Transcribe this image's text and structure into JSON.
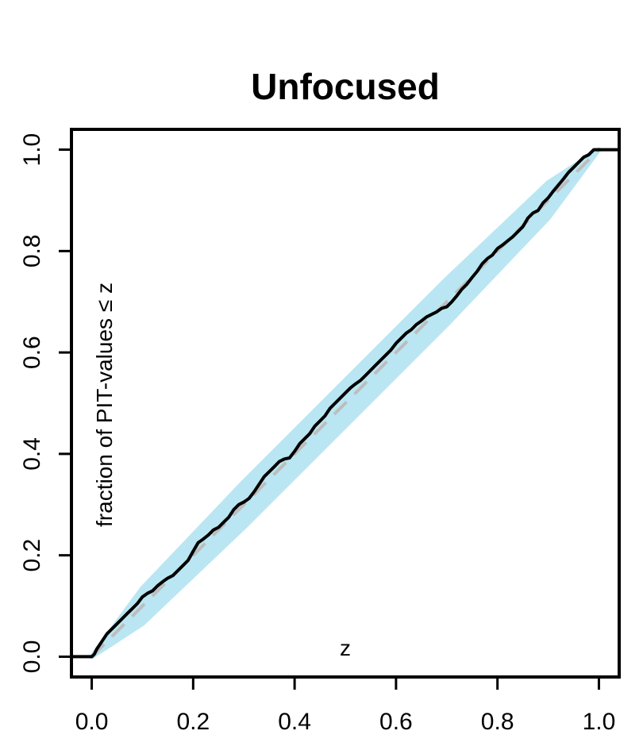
{
  "chart_data": {
    "type": "line",
    "title": "Unfocused",
    "xlabel": "z",
    "ylabel": "fraction of PIT-values ≤ z",
    "xlim": [
      -0.04,
      1.04
    ],
    "ylim": [
      -0.04,
      1.04
    ],
    "x_ticks": [
      "0.0",
      "0.2",
      "0.4",
      "0.6",
      "0.8",
      "1.0"
    ],
    "y_ticks": [
      "0.0",
      "0.2",
      "0.4",
      "0.6",
      "0.8",
      "1.0"
    ],
    "grid": false,
    "legend": "none",
    "series": [
      {
        "role": "empirical-cdf",
        "color": "#000000",
        "x": [
          -0.04,
          0.0,
          0.005,
          0.01,
          0.02,
          0.03,
          0.04,
          0.05,
          0.06,
          0.07,
          0.08,
          0.09,
          0.1,
          0.11,
          0.12,
          0.13,
          0.14,
          0.15,
          0.16,
          0.17,
          0.18,
          0.19,
          0.2,
          0.21,
          0.22,
          0.23,
          0.24,
          0.25,
          0.26,
          0.27,
          0.28,
          0.29,
          0.3,
          0.31,
          0.32,
          0.33,
          0.34,
          0.35,
          0.36,
          0.37,
          0.38,
          0.39,
          0.4,
          0.41,
          0.42,
          0.43,
          0.44,
          0.45,
          0.46,
          0.47,
          0.48,
          0.49,
          0.5,
          0.51,
          0.52,
          0.53,
          0.54,
          0.55,
          0.56,
          0.57,
          0.58,
          0.59,
          0.6,
          0.61,
          0.62,
          0.63,
          0.64,
          0.65,
          0.66,
          0.67,
          0.68,
          0.69,
          0.7,
          0.71,
          0.72,
          0.73,
          0.74,
          0.75,
          0.76,
          0.77,
          0.78,
          0.79,
          0.8,
          0.81,
          0.82,
          0.83,
          0.84,
          0.85,
          0.86,
          0.87,
          0.88,
          0.89,
          0.9,
          0.91,
          0.92,
          0.93,
          0.94,
          0.95,
          0.96,
          0.97,
          0.98,
          0.99,
          1.0,
          1.04
        ],
        "y": [
          0.0,
          0.0,
          0.005,
          0.015,
          0.03,
          0.045,
          0.055,
          0.065,
          0.075,
          0.085,
          0.095,
          0.105,
          0.118,
          0.125,
          0.13,
          0.14,
          0.148,
          0.155,
          0.16,
          0.17,
          0.18,
          0.19,
          0.208,
          0.225,
          0.232,
          0.24,
          0.25,
          0.255,
          0.265,
          0.275,
          0.29,
          0.3,
          0.305,
          0.312,
          0.325,
          0.34,
          0.355,
          0.365,
          0.375,
          0.385,
          0.39,
          0.392,
          0.405,
          0.42,
          0.43,
          0.44,
          0.455,
          0.465,
          0.475,
          0.49,
          0.5,
          0.51,
          0.52,
          0.53,
          0.538,
          0.545,
          0.555,
          0.565,
          0.575,
          0.585,
          0.595,
          0.605,
          0.618,
          0.628,
          0.638,
          0.645,
          0.655,
          0.662,
          0.67,
          0.675,
          0.68,
          0.687,
          0.69,
          0.7,
          0.712,
          0.725,
          0.735,
          0.748,
          0.76,
          0.775,
          0.785,
          0.792,
          0.805,
          0.812,
          0.82,
          0.828,
          0.838,
          0.848,
          0.865,
          0.875,
          0.88,
          0.895,
          0.905,
          0.918,
          0.93,
          0.942,
          0.955,
          0.965,
          0.975,
          0.985,
          0.99,
          1.0,
          1.0,
          1.0
        ]
      },
      {
        "role": "reference-diagonal",
        "color": "#bdbdbd",
        "x": [
          0,
          1
        ],
        "y": [
          0,
          1
        ]
      }
    ],
    "band": {
      "role": "confidence-band",
      "color": "#b9e6f2",
      "x": [
        0.0,
        0.1,
        0.2,
        0.3,
        0.4,
        0.5,
        0.6,
        0.7,
        0.8,
        0.9,
        1.0
      ],
      "lower": [
        0.0,
        0.065,
        0.16,
        0.255,
        0.355,
        0.455,
        0.555,
        0.655,
        0.76,
        0.865,
        1.0
      ],
      "upper": [
        0.0,
        0.135,
        0.24,
        0.345,
        0.445,
        0.545,
        0.645,
        0.745,
        0.84,
        0.935,
        1.0
      ]
    }
  }
}
